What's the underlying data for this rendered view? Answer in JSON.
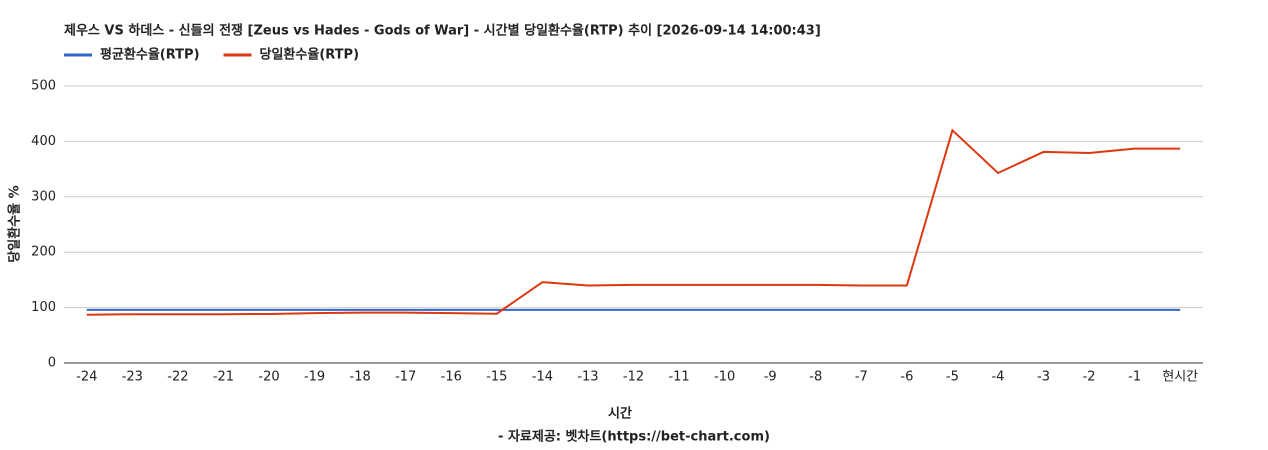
{
  "chart_data": {
    "type": "line",
    "title": "제우스 VS 하데스 - 신들의 전쟁 [Zeus vs Hades - Gods of War] - 시간별 당일환수율(RTP) 추이 [2026-09-14 14:00:43]",
    "x_label": "시간",
    "y_label": "당일환수율 %",
    "footer": "- 자료제공: 벳차트(https://bet-chart.com)",
    "categories": [
      "-24",
      "-23",
      "-22",
      "-21",
      "-20",
      "-19",
      "-18",
      "-17",
      "-16",
      "-15",
      "-14",
      "-13",
      "-12",
      "-11",
      "-10",
      "-9",
      "-8",
      "-7",
      "-6",
      "-5",
      "-4",
      "-3",
      "-2",
      "-1",
      "현시간"
    ],
    "series": [
      {
        "name": "평균환수율(RTP)",
        "color": "#3366cc",
        "values": [
          96,
          96,
          96,
          96,
          96,
          96,
          96,
          96,
          96,
          96,
          96,
          96,
          96,
          96,
          96,
          96,
          96,
          96,
          96,
          96,
          96,
          96,
          96,
          96,
          96
        ]
      },
      {
        "name": "당일환수율(RTP)",
        "color": "#dc3912",
        "values": [
          87,
          88,
          88,
          88,
          88.5,
          90,
          91,
          91,
          90,
          89,
          146,
          140,
          141,
          141,
          141,
          141,
          141,
          140,
          140,
          420,
          343,
          381,
          379,
          387,
          387
        ]
      }
    ],
    "ylim": [
      0,
      500
    ],
    "yticks": [
      0,
      100,
      200,
      300,
      400,
      500
    ],
    "grid": true
  }
}
